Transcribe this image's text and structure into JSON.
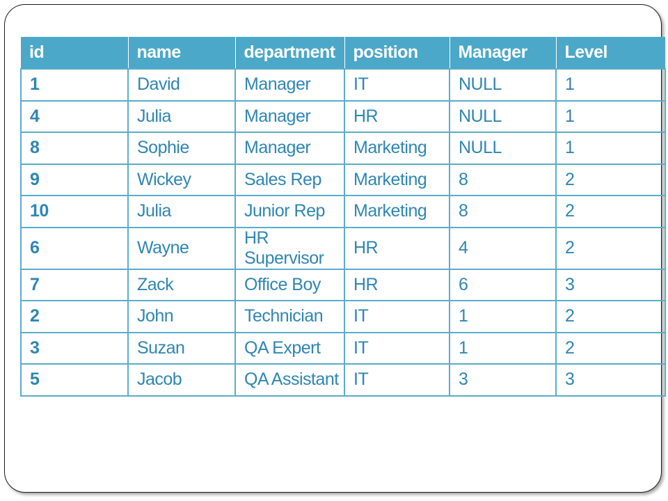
{
  "table": {
    "headers": [
      "id",
      "name",
      "department",
      "position",
      "Manager",
      "Level"
    ],
    "rows": [
      [
        "1",
        "David",
        "Manager",
        "IT",
        "NULL",
        "1"
      ],
      [
        "4",
        "Julia",
        "Manager",
        "HR",
        "NULL",
        "1"
      ],
      [
        "8",
        "Sophie",
        "Manager",
        "Marketing",
        "NULL",
        "1"
      ],
      [
        "9",
        "Wickey",
        "Sales Rep",
        "Marketing",
        "8",
        "2"
      ],
      [
        "10",
        "Julia",
        "Junior Rep",
        "Marketing",
        "8",
        "2"
      ],
      [
        "6",
        "Wayne",
        "HR Supervisor",
        "HR",
        "4",
        "2"
      ],
      [
        "7",
        "Zack",
        "Office Boy",
        "HR",
        "6",
        "3"
      ],
      [
        "2",
        "John",
        "Technician",
        "IT",
        "1",
        "2"
      ],
      [
        "3",
        "Suzan",
        "QA Expert",
        "IT",
        "1",
        "2"
      ],
      [
        "5",
        "Jacob",
        "QA Assistant",
        "IT",
        "3",
        "3"
      ]
    ]
  },
  "colors": {
    "header_bg": "#4ba8c8",
    "header_text": "#ffffff",
    "cell_text": "#2e86b3",
    "grid_line": "#5aaccb"
  }
}
